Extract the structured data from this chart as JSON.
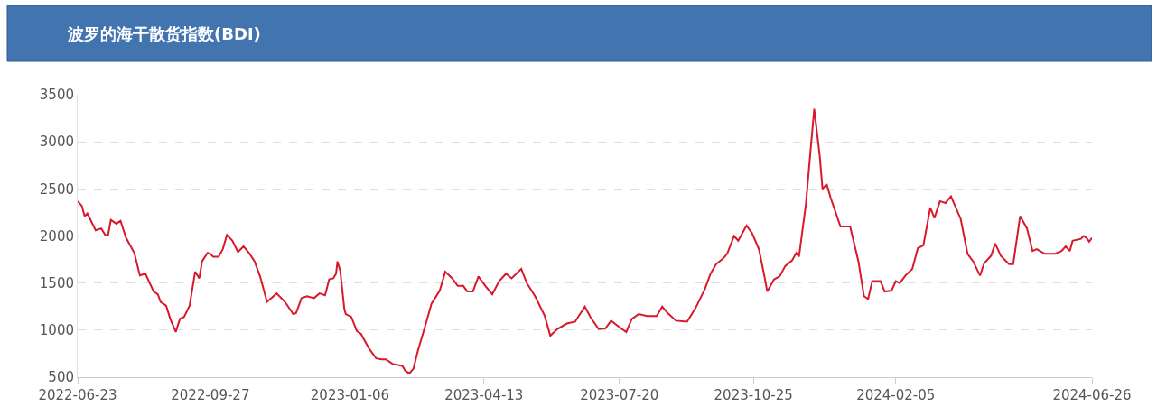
{
  "chart_data": {
    "type": "line",
    "title": "波罗的海干散货指数(BDI)",
    "x": [
      "2022-06-23",
      "2022-06-26",
      "2022-06-28",
      "2022-06-30",
      "2022-07-06",
      "2022-07-10",
      "2022-07-13",
      "2022-07-15",
      "2022-07-17",
      "2022-07-21",
      "2022-07-24",
      "2022-07-28",
      "2022-08-03",
      "2022-08-07",
      "2022-08-11",
      "2022-08-17",
      "2022-08-20",
      "2022-08-22",
      "2022-08-26",
      "2022-08-29",
      "2022-09-02",
      "2022-09-05",
      "2022-09-08",
      "2022-09-12",
      "2022-09-16",
      "2022-09-19",
      "2022-09-21",
      "2022-09-25",
      "2022-09-27",
      "2022-09-29",
      "2022-10-03",
      "2022-10-06",
      "2022-10-09",
      "2022-10-13",
      "2022-10-17",
      "2022-10-21",
      "2022-10-25",
      "2022-10-29",
      "2022-11-02",
      "2022-11-07",
      "2022-11-14",
      "2022-11-20",
      "2022-11-26",
      "2022-11-28",
      "2022-12-02",
      "2022-12-06",
      "2022-12-11",
      "2022-12-15",
      "2022-12-19",
      "2022-12-22",
      "2022-12-25",
      "2022-12-27",
      "2022-12-28",
      "2022-12-30",
      "2023-01-02",
      "2023-01-03",
      "2023-01-07",
      "2023-01-11",
      "2023-01-14",
      "2023-01-20",
      "2023-01-25",
      "2023-01-29",
      "2023-02-01",
      "2023-02-06",
      "2023-02-13",
      "2023-02-15",
      "2023-02-18",
      "2023-02-21",
      "2023-02-24",
      "2023-03-01",
      "2023-03-06",
      "2023-03-12",
      "2023-03-16",
      "2023-03-21",
      "2023-03-25",
      "2023-03-29",
      "2023-04-01",
      "2023-04-05",
      "2023-04-09",
      "2023-04-14",
      "2023-04-19",
      "2023-04-24",
      "2023-04-29",
      "2023-05-03",
      "2023-05-10",
      "2023-05-14",
      "2023-05-20",
      "2023-05-27",
      "2023-05-31",
      "2023-06-05",
      "2023-06-12",
      "2023-06-18",
      "2023-06-25",
      "2023-06-29",
      "2023-07-05",
      "2023-07-10",
      "2023-07-14",
      "2023-07-21",
      "2023-07-25",
      "2023-07-29",
      "2023-08-03",
      "2023-08-09",
      "2023-08-16",
      "2023-08-20",
      "2023-08-24",
      "2023-08-30",
      "2023-09-07",
      "2023-09-13",
      "2023-09-20",
      "2023-09-24",
      "2023-09-28",
      "2023-10-03",
      "2023-10-06",
      "2023-10-11",
      "2023-10-14",
      "2023-10-20",
      "2023-10-24",
      "2023-10-29",
      "2023-11-02",
      "2023-11-04",
      "2023-11-09",
      "2023-11-13",
      "2023-11-17",
      "2023-11-22",
      "2023-11-25",
      "2023-11-27",
      "2023-12-02",
      "2023-12-05",
      "2023-12-08",
      "2023-12-12",
      "2023-12-14",
      "2023-12-17",
      "2023-12-20",
      "2023-12-27",
      "2024-01-03",
      "2024-01-09",
      "2024-01-13",
      "2024-01-16",
      "2024-01-19",
      "2024-01-25",
      "2024-01-28",
      "2024-02-02",
      "2024-02-05",
      "2024-02-08",
      "2024-02-12",
      "2024-02-17",
      "2024-02-21",
      "2024-02-25",
      "2024-03-01",
      "2024-03-04",
      "2024-03-08",
      "2024-03-12",
      "2024-03-16",
      "2024-03-23",
      "2024-03-28",
      "2024-04-01",
      "2024-04-06",
      "2024-04-09",
      "2024-04-14",
      "2024-04-17",
      "2024-04-21",
      "2024-04-27",
      "2024-04-30",
      "2024-05-05",
      "2024-05-10",
      "2024-05-14",
      "2024-05-17",
      "2024-05-23",
      "2024-05-30",
      "2024-06-04",
      "2024-06-07",
      "2024-06-10",
      "2024-06-12",
      "2024-06-18",
      "2024-06-20",
      "2024-06-22",
      "2024-06-24",
      "2024-06-26"
    ],
    "series": [
      {
        "color": "#d7192b",
        "values": [
          2370,
          2320,
          2210,
          2240,
          2060,
          2080,
          2010,
          2010,
          2170,
          2130,
          2160,
          1980,
          1820,
          1580,
          1600,
          1410,
          1380,
          1300,
          1260,
          1120,
          980,
          1120,
          1140,
          1260,
          1620,
          1550,
          1730,
          1820,
          1810,
          1780,
          1780,
          1860,
          2010,
          1950,
          1830,
          1890,
          1820,
          1730,
          1570,
          1300,
          1390,
          1300,
          1170,
          1180,
          1340,
          1360,
          1340,
          1390,
          1370,
          1540,
          1550,
          1600,
          1730,
          1630,
          1220,
          1170,
          1140,
          990,
          960,
          800,
          700,
          690,
          690,
          640,
          620,
          570,
          540,
          590,
          770,
          1020,
          1280,
          1420,
          1620,
          1550,
          1470,
          1470,
          1410,
          1410,
          1570,
          1470,
          1380,
          1520,
          1600,
          1550,
          1650,
          1500,
          1360,
          1150,
          940,
          1010,
          1070,
          1090,
          1250,
          1140,
          1010,
          1020,
          1100,
          1020,
          980,
          1120,
          1170,
          1150,
          1150,
          1250,
          1180,
          1100,
          1090,
          1230,
          1440,
          1600,
          1700,
          1760,
          1810,
          2000,
          1950,
          2110,
          2030,
          1860,
          1570,
          1410,
          1540,
          1570,
          1680,
          1740,
          1820,
          1780,
          2340,
          2850,
          3350,
          2850,
          2500,
          2550,
          2400,
          2100,
          2100,
          1730,
          1360,
          1330,
          1520,
          1520,
          1410,
          1420,
          1520,
          1500,
          1580,
          1650,
          1870,
          1900,
          2300,
          2190,
          2370,
          2350,
          2420,
          2180,
          1810,
          1730,
          1580,
          1710,
          1790,
          1920,
          1790,
          1700,
          1700,
          2210,
          2080,
          1840,
          1860,
          1810,
          1810,
          1840,
          1890,
          1840,
          1950,
          1970,
          2000,
          1980,
          1940,
          1980
        ]
      }
    ],
    "xlim": [
      "2022-06-23",
      "2024-06-26"
    ],
    "xticks": [
      {
        "value": "2022-06-23",
        "label": "2022-06-23"
      },
      {
        "value": "2022-09-27",
        "label": "2022-09-27"
      },
      {
        "value": "2023-01-06",
        "label": "2023-01-06"
      },
      {
        "value": "2023-04-13",
        "label": "2023-04-13"
      },
      {
        "value": "2023-07-20",
        "label": "2023-07-20"
      },
      {
        "value": "2023-10-25",
        "label": "2023-10-25"
      },
      {
        "value": "2024-02-05",
        "label": "2024-02-05"
      },
      {
        "value": "2024-06-26",
        "label": "2024-06-26"
      }
    ],
    "ylim": [
      500,
      3500
    ],
    "yticks": [
      500,
      1000,
      1500,
      2000,
      2500,
      3000,
      3500
    ],
    "grid": "y",
    "marker": "none",
    "line_style": "solid"
  }
}
